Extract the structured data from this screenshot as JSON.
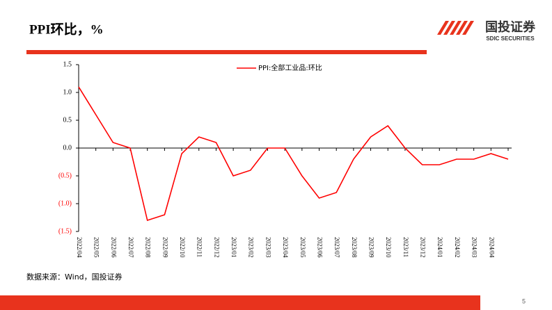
{
  "header": {
    "title": "PPI环比，%",
    "logo_cn": "国投证券",
    "logo_en": "SDIC SECURITIES"
  },
  "chart_data": {
    "type": "line",
    "categories": [
      "2022/04",
      "2022/05",
      "2022/06",
      "2022/07",
      "2022/08",
      "2022/09",
      "2022/10",
      "2022/11",
      "2022/12",
      "2023/01",
      "2023/02",
      "2023/03",
      "2023/04",
      "2023/05",
      "2023/06",
      "2023/07",
      "2023/08",
      "2023/09",
      "2023/10",
      "2023/11",
      "2023/12",
      "2024/01",
      "2024/02",
      "2024/03",
      "2024/04",
      null
    ],
    "series": [
      {
        "name": "PPI:全部工业品:环比",
        "color": "#ff0000",
        "values": [
          1.1,
          0.6,
          0.1,
          0.0,
          -1.3,
          -1.2,
          -0.1,
          0.2,
          0.1,
          -0.5,
          -0.4,
          0.0,
          0.0,
          -0.5,
          -0.9,
          -0.8,
          -0.2,
          0.2,
          0.4,
          0.0,
          -0.3,
          -0.3,
          -0.2,
          -0.2,
          -0.1,
          -0.2
        ]
      }
    ],
    "ylim": [
      -1.5,
      1.5
    ],
    "yticks": [
      1.5,
      {
        "value": 1.0,
        "label": "1.0"
      },
      0.5,
      {
        "value": 0.0,
        "label": "0.0"
      },
      {
        "value": -0.5,
        "label": "(0.5)"
      },
      {
        "value": -1.0,
        "label": "(1.0)"
      },
      {
        "value": -1.5,
        "label": "(1.5)"
      }
    ],
    "legend": "top"
  },
  "source": "数据来源：Wind，国投证券",
  "page_number": "5"
}
